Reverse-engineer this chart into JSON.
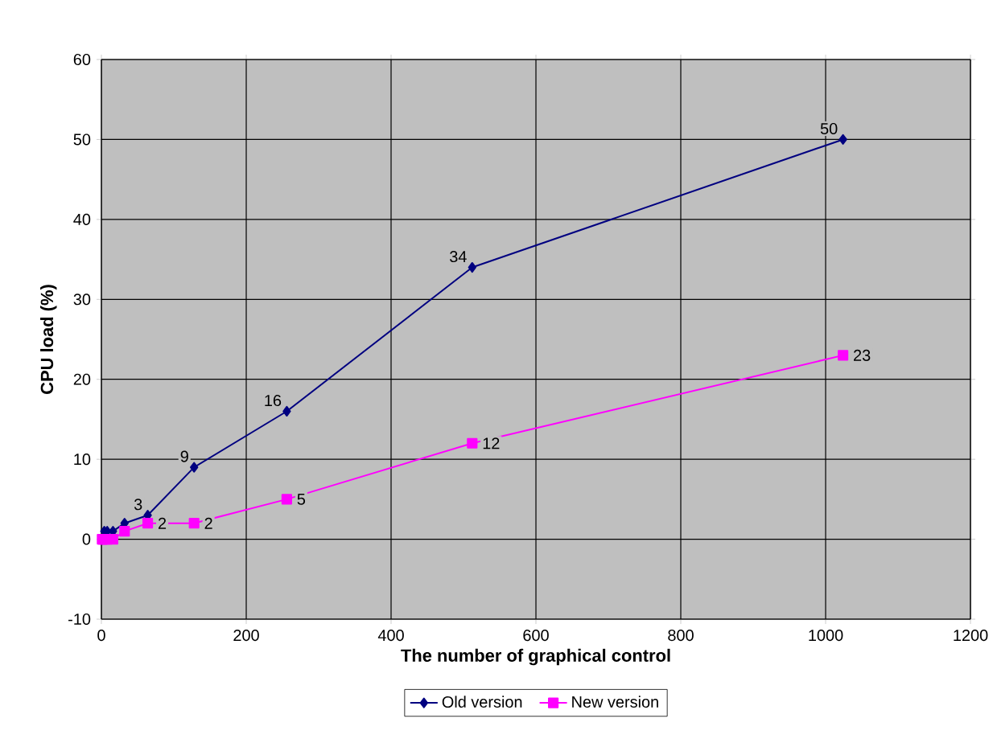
{
  "chart_data": {
    "type": "line",
    "xlabel": "The number of graphical control",
    "ylabel": "CPU  load (%)",
    "x": [
      1,
      2,
      4,
      8,
      16,
      32,
      64,
      128,
      256,
      512,
      1024
    ],
    "series": [
      {
        "name": "Old version",
        "color": "#000080",
        "marker": "diamond",
        "values": [
          0,
          0,
          1,
          1,
          1,
          2,
          3,
          9,
          16,
          34,
          50
        ],
        "value_labels": [
          null,
          null,
          null,
          null,
          null,
          null,
          "3",
          "9",
          "16",
          "34",
          "50"
        ]
      },
      {
        "name": "New version",
        "color": "#ff00ff",
        "marker": "square",
        "values": [
          0,
          0,
          0,
          0,
          0,
          1,
          2,
          2,
          5,
          12,
          23
        ],
        "value_labels": [
          null,
          null,
          null,
          null,
          null,
          null,
          "2",
          "2",
          "5",
          "12",
          "23"
        ]
      }
    ],
    "xlim": [
      0,
      1200
    ],
    "ylim": [
      -10,
      60
    ],
    "xticks": [
      0,
      200,
      400,
      600,
      800,
      1000,
      1200
    ],
    "yticks": [
      -10,
      0,
      10,
      20,
      30,
      40,
      50,
      60
    ],
    "grid": true,
    "legend": "bottom"
  }
}
